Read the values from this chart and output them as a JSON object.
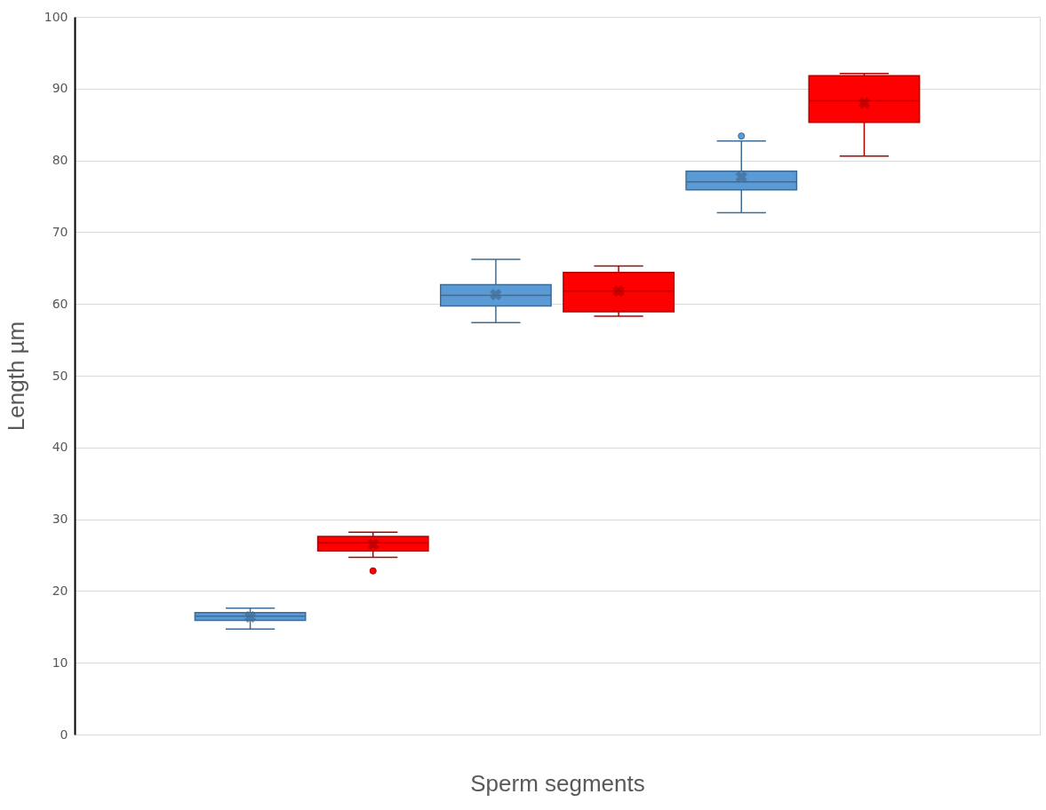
{
  "chart_data": {
    "type": "box",
    "xlabel": "Sperm segments",
    "ylabel": "Length µm",
    "categories": [
      null
    ],
    "series": [
      {
        "color": "#5b9bd5",
        "boxes": [
          {
            "low": 14.7,
            "q1": 15.9,
            "median": 16.5,
            "q3": 17.0,
            "high": 17.6,
            "mean": 16.4
          }
        ]
      },
      {
        "color": "#ff0000",
        "boxes": [
          {
            "low": 24.7,
            "q1": 25.6,
            "median": 26.7,
            "q3": 27.6,
            "high": 28.2,
            "mean": 26.5,
            "outliers": [
              22.8
            ]
          }
        ]
      },
      {
        "color": "#5b9bd5",
        "boxes": [
          {
            "low": 57.4,
            "q1": 59.7,
            "median": 61.2,
            "q3": 62.7,
            "high": 66.2,
            "mean": 61.3
          }
        ]
      },
      {
        "color": "#ff0000",
        "boxes": [
          {
            "low": 58.3,
            "q1": 58.9,
            "median": 61.8,
            "q3": 64.4,
            "high": 65.3,
            "mean": 61.8
          }
        ]
      },
      {
        "color": "#5b9bd5",
        "boxes": [
          {
            "low": 72.7,
            "q1": 75.9,
            "median": 77.0,
            "q3": 78.5,
            "high": 82.7,
            "mean": 77.7,
            "outliers": [
              83.4
            ]
          }
        ]
      },
      {
        "color": "#ff0000",
        "boxes": [
          {
            "low": 80.6,
            "q1": 85.3,
            "median": 88.3,
            "q3": 91.8,
            "high": 92.1,
            "mean": 88.0
          }
        ]
      }
    ],
    "ylim": [
      0,
      100
    ],
    "yticks": [
      0,
      10,
      20,
      30,
      40,
      50,
      60,
      70,
      80,
      90,
      100
    ],
    "grid": "y"
  }
}
